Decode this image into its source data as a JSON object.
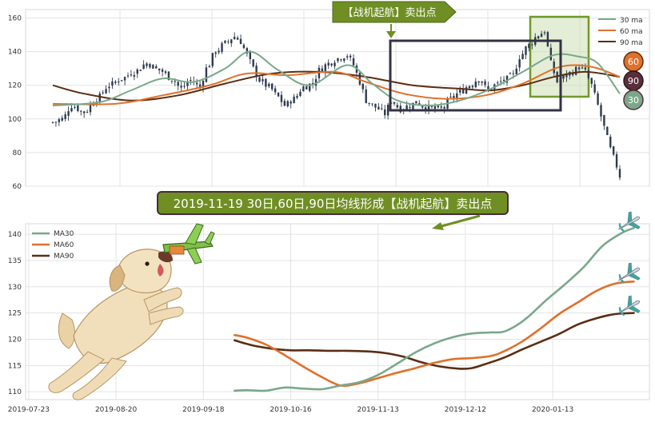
{
  "chart_data": [
    {
      "type": "line",
      "panel": "top",
      "subtype": "candlestick-with-moving-averages",
      "title": "",
      "xlabel": "",
      "ylabel": "",
      "ylim": [
        60,
        165
      ],
      "yticks": [
        60,
        80,
        100,
        120,
        140,
        160
      ],
      "grid": true,
      "legend_position": "top-right",
      "legend": [
        "30 ma",
        "60 ma",
        "90 ma"
      ],
      "ma_badges": [
        "60",
        "90",
        "30"
      ],
      "annotation_banner": "【战机起航】卖出点",
      "colors": {
        "ma30": "#7aa88a",
        "ma60": "#e0702a",
        "ma90": "#5a2e14",
        "candle": "#2e3a4e",
        "highlight_box": "#333344",
        "green_box": "#6f9a2a",
        "banner_bg": "#6f8f24"
      },
      "price_keypoints": [
        [
          0,
          98
        ],
        [
          3,
          100
        ],
        [
          6,
          108
        ],
        [
          10,
          104
        ],
        [
          14,
          112
        ],
        [
          18,
          120
        ],
        [
          22,
          124
        ],
        [
          26,
          128
        ],
        [
          30,
          133
        ],
        [
          34,
          129
        ],
        [
          38,
          124
        ],
        [
          41,
          118
        ],
        [
          44,
          123
        ],
        [
          47,
          119
        ],
        [
          49,
          130
        ],
        [
          52,
          140
        ],
        [
          55,
          145
        ],
        [
          58,
          149
        ],
        [
          60,
          146
        ],
        [
          62,
          138
        ],
        [
          64,
          130
        ],
        [
          66,
          123
        ],
        [
          69,
          119
        ],
        [
          72,
          113
        ],
        [
          74,
          108
        ],
        [
          77,
          112
        ],
        [
          80,
          119
        ],
        [
          83,
          121
        ],
        [
          85,
          129
        ],
        [
          88,
          133
        ],
        [
          91,
          136
        ],
        [
          94,
          138
        ],
        [
          96,
          132
        ],
        [
          98,
          122
        ],
        [
          100,
          111
        ],
        [
          103,
          107
        ],
        [
          106,
          103
        ],
        [
          108,
          111
        ],
        [
          111,
          106
        ],
        [
          114,
          108
        ],
        [
          116,
          110
        ],
        [
          119,
          107
        ],
        [
          122,
          106
        ],
        [
          124,
          106
        ],
        [
          127,
          112
        ],
        [
          130,
          116
        ],
        [
          133,
          120
        ],
        [
          136,
          124
        ],
        [
          139,
          117
        ],
        [
          141,
          120
        ],
        [
          144,
          123
        ],
        [
          147,
          126
        ],
        [
          149,
          137
        ],
        [
          152,
          144
        ],
        [
          155,
          150
        ],
        [
          157,
          152
        ],
        [
          159,
          133
        ],
        [
          161,
          122
        ],
        [
          163,
          125
        ],
        [
          166,
          128
        ],
        [
          168,
          131
        ],
        [
          170,
          128
        ],
        [
          172,
          120
        ],
        [
          174,
          108
        ],
        [
          176,
          95
        ],
        [
          178,
          82
        ],
        [
          180,
          72
        ],
        [
          181,
          66
        ]
      ],
      "ma30_keypoints": [
        [
          0,
          108
        ],
        [
          15,
          110
        ],
        [
          25,
          117
        ],
        [
          35,
          124
        ],
        [
          45,
          122
        ],
        [
          55,
          130
        ],
        [
          63,
          140
        ],
        [
          72,
          129
        ],
        [
          82,
          120
        ],
        [
          94,
          132
        ],
        [
          102,
          121
        ],
        [
          110,
          111
        ],
        [
          120,
          108
        ],
        [
          130,
          111
        ],
        [
          140,
          118
        ],
        [
          150,
          128
        ],
        [
          160,
          138
        ],
        [
          168,
          137
        ],
        [
          174,
          133
        ],
        [
          181,
          115
        ]
      ],
      "ma60_keypoints": [
        [
          0,
          109
        ],
        [
          20,
          109
        ],
        [
          35,
          114
        ],
        [
          50,
          120
        ],
        [
          62,
          127
        ],
        [
          75,
          126
        ],
        [
          90,
          128
        ],
        [
          100,
          122
        ],
        [
          112,
          115
        ],
        [
          125,
          112
        ],
        [
          138,
          114
        ],
        [
          150,
          121
        ],
        [
          162,
          131
        ],
        [
          172,
          131
        ],
        [
          181,
          125
        ]
      ],
      "ma90_keypoints": [
        [
          0,
          120
        ],
        [
          10,
          115
        ],
        [
          25,
          111
        ],
        [
          40,
          114
        ],
        [
          55,
          121
        ],
        [
          70,
          127
        ],
        [
          85,
          128
        ],
        [
          100,
          125
        ],
        [
          115,
          120
        ],
        [
          130,
          118
        ],
        [
          140,
          117
        ],
        [
          150,
          120
        ],
        [
          160,
          125
        ],
        [
          170,
          128
        ],
        [
          181,
          125
        ]
      ]
    },
    {
      "type": "line",
      "panel": "bottom",
      "title": "2019-11-19 30日,60日,90日均线形成【战机起航】卖出点",
      "xlabel": "",
      "ylabel": "",
      "ylim": [
        108.5,
        142
      ],
      "yticks": [
        110,
        115,
        120,
        125,
        130,
        135,
        140
      ],
      "xticks": [
        "2019-07-23",
        "2019-08-20",
        "2019-09-18",
        "2019-10-16",
        "2019-11-13",
        "2019-12-12",
        "2020-01-13"
      ],
      "xtick_index": [
        0,
        28,
        56,
        84,
        112,
        140,
        168
      ],
      "x_range": [
        -1,
        199
      ],
      "grid": true,
      "legend_position": "top-left",
      "series": [
        {
          "name": "MA30",
          "color": "#7aa88a",
          "points": [
            [
              66,
              110.2
            ],
            [
              70,
              110.3
            ],
            [
              76,
              110.2
            ],
            [
              82,
              110.8
            ],
            [
              88,
              110.6
            ],
            [
              94,
              110.5
            ],
            [
              100,
              111.2
            ],
            [
              106,
              111.8
            ],
            [
              112,
              113.2
            ],
            [
              118,
              115.3
            ],
            [
              124,
              117.5
            ],
            [
              130,
              119.2
            ],
            [
              136,
              120.4
            ],
            [
              142,
              121.1
            ],
            [
              148,
              121.3
            ],
            [
              152,
              121.4
            ],
            [
              156,
              122.5
            ],
            [
              160,
              124.2
            ],
            [
              166,
              127.5
            ],
            [
              172,
              130.5
            ],
            [
              178,
              133.8
            ],
            [
              184,
              137.8
            ],
            [
              190,
              140.2
            ],
            [
              194,
              141.2
            ]
          ]
        },
        {
          "name": "MA60",
          "color": "#e0702a",
          "points": [
            [
              66,
              120.8
            ],
            [
              70,
              120.3
            ],
            [
              76,
              119.0
            ],
            [
              82,
              117.0
            ],
            [
              88,
              114.8
            ],
            [
              94,
              112.8
            ],
            [
              100,
              111.2
            ],
            [
              106,
              111.6
            ],
            [
              112,
              112.6
            ],
            [
              118,
              113.6
            ],
            [
              124,
              114.5
            ],
            [
              130,
              115.5
            ],
            [
              136,
              116.2
            ],
            [
              142,
              116.4
            ],
            [
              148,
              116.8
            ],
            [
              152,
              117.6
            ],
            [
              158,
              119.5
            ],
            [
              164,
              122.0
            ],
            [
              170,
              124.8
            ],
            [
              176,
              127.0
            ],
            [
              182,
              129.2
            ],
            [
              188,
              130.6
            ],
            [
              194,
              131.0
            ]
          ]
        },
        {
          "name": "MA90",
          "color": "#5a2e14",
          "points": [
            [
              66,
              119.8
            ],
            [
              72,
              118.8
            ],
            [
              78,
              118.2
            ],
            [
              84,
              117.9
            ],
            [
              90,
              117.9
            ],
            [
              96,
              117.8
            ],
            [
              102,
              117.8
            ],
            [
              108,
              117.7
            ],
            [
              114,
              117.4
            ],
            [
              120,
              116.7
            ],
            [
              126,
              115.6
            ],
            [
              132,
              114.8
            ],
            [
              138,
              114.4
            ],
            [
              142,
              114.5
            ],
            [
              146,
              115.2
            ],
            [
              152,
              116.4
            ],
            [
              158,
              118.0
            ],
            [
              164,
              119.5
            ],
            [
              170,
              121.0
            ],
            [
              176,
              122.8
            ],
            [
              182,
              124.0
            ],
            [
              188,
              124.8
            ],
            [
              194,
              125.0
            ]
          ]
        }
      ]
    }
  ]
}
